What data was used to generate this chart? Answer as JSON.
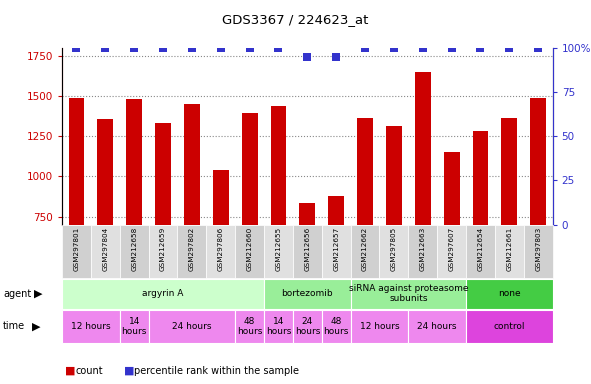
{
  "title": "GDS3367 / 224623_at",
  "samples": [
    "GSM297801",
    "GSM297804",
    "GSM212658",
    "GSM212659",
    "GSM297802",
    "GSM297806",
    "GSM212660",
    "GSM212655",
    "GSM212656",
    "GSM212657",
    "GSM212662",
    "GSM297805",
    "GSM212663",
    "GSM297607",
    "GSM212654",
    "GSM212661",
    "GSM297803"
  ],
  "counts": [
    1490,
    1360,
    1480,
    1335,
    1450,
    1040,
    1395,
    1440,
    835,
    880,
    1365,
    1315,
    1650,
    1150,
    1285,
    1365,
    1490
  ],
  "percentile_ranks": [
    100,
    100,
    100,
    100,
    100,
    100,
    100,
    100,
    95,
    95,
    100,
    100,
    100,
    100,
    100,
    100,
    100
  ],
  "bar_color": "#cc0000",
  "dot_color": "#3333cc",
  "ylim_left": [
    700,
    1800
  ],
  "ylim_right": [
    0,
    100
  ],
  "yticks_left": [
    750,
    1000,
    1250,
    1500,
    1750
  ],
  "yticks_right": [
    0,
    25,
    50,
    75,
    100
  ],
  "agent_groups": [
    {
      "label": "argyrin A",
      "start": 0,
      "end": 7,
      "color": "#ccffcc"
    },
    {
      "label": "bortezomib",
      "start": 7,
      "end": 10,
      "color": "#99ee99"
    },
    {
      "label": "siRNA against proteasome\nsubunits",
      "start": 10,
      "end": 14,
      "color": "#99ee99"
    },
    {
      "label": "none",
      "start": 14,
      "end": 17,
      "color": "#44cc44"
    }
  ],
  "time_groups": [
    {
      "label": "12 hours",
      "start": 0,
      "end": 2,
      "color": "#ee88ee"
    },
    {
      "label": "14\nhours",
      "start": 2,
      "end": 3,
      "color": "#ee88ee"
    },
    {
      "label": "24 hours",
      "start": 3,
      "end": 6,
      "color": "#ee88ee"
    },
    {
      "label": "48\nhours",
      "start": 6,
      "end": 7,
      "color": "#ee88ee"
    },
    {
      "label": "14\nhours",
      "start": 7,
      "end": 8,
      "color": "#ee88ee"
    },
    {
      "label": "24\nhours",
      "start": 8,
      "end": 9,
      "color": "#ee88ee"
    },
    {
      "label": "48\nhours",
      "start": 9,
      "end": 10,
      "color": "#ee88ee"
    },
    {
      "label": "12 hours",
      "start": 10,
      "end": 12,
      "color": "#ee88ee"
    },
    {
      "label": "24 hours",
      "start": 12,
      "end": 14,
      "color": "#ee88ee"
    },
    {
      "label": "control",
      "start": 14,
      "end": 17,
      "color": "#dd44dd"
    }
  ],
  "left_axis_color": "#cc0000",
  "right_axis_color": "#3333cc",
  "grid_color": "#888888",
  "background_color": "#ffffff",
  "bar_width": 0.55,
  "dot_size": 28,
  "sample_bg_even": "#d0d0d0",
  "sample_bg_odd": "#e0e0e0",
  "fig_width": 5.91,
  "fig_height": 3.84,
  "fig_dpi": 100
}
